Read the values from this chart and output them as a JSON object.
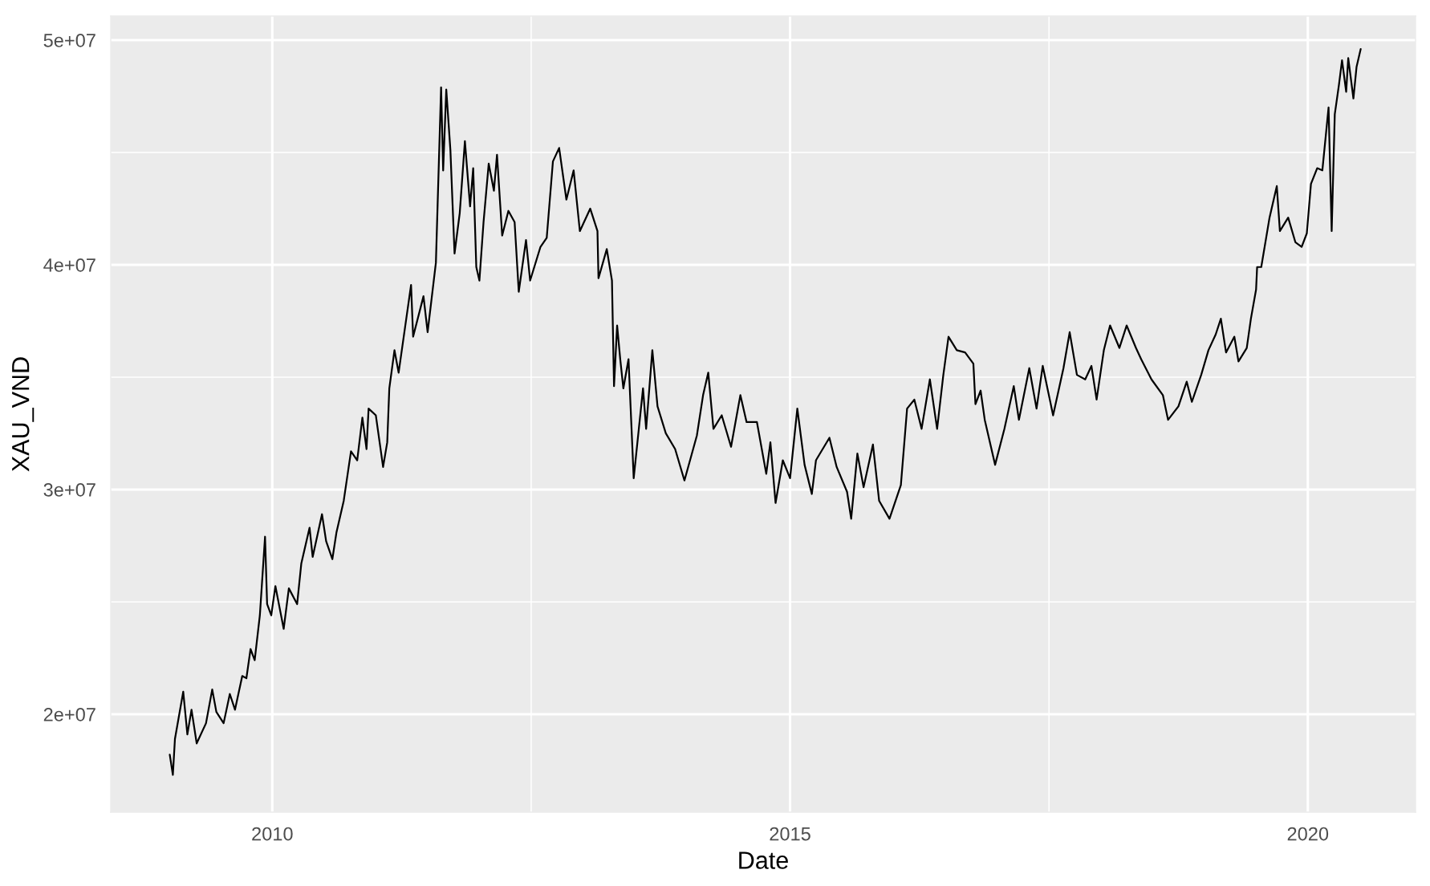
{
  "chart_data": {
    "type": "line",
    "xlabel": "Date",
    "ylabel": "XAU_VND",
    "xlim": [
      2008.44,
      2021.04
    ],
    "ylim": [
      15640000,
      51070000
    ],
    "xticks": [
      2010,
      {
        "value": 2012.5,
        "label": null
      },
      2015,
      {
        "value": 2017.5,
        "label": null
      },
      2020
    ],
    "yticks": [
      {
        "value": 20000000,
        "label": "2e+07"
      },
      {
        "value": 25000000,
        "label": null
      },
      {
        "value": 30000000,
        "label": "3e+07"
      },
      {
        "value": 35000000,
        "label": null
      },
      {
        "value": 40000000,
        "label": "4e+07"
      },
      {
        "value": 45000000,
        "label": null
      },
      {
        "value": 50000000,
        "label": "5e+07"
      }
    ],
    "grid": true,
    "series": [
      {
        "color": "#000000",
        "x": [
          2009.01,
          2009.04,
          2009.06,
          2009.14,
          2009.18,
          2009.22,
          2009.27,
          2009.36,
          2009.42,
          2009.46,
          2009.53,
          2009.59,
          2009.64,
          2009.71,
          2009.75,
          2009.79,
          2009.83,
          2009.88,
          2009.93,
          2009.95,
          2009.99,
          2010.03,
          2010.11,
          2010.16,
          2010.24,
          2010.28,
          2010.36,
          2010.39,
          2010.48,
          2010.52,
          2010.58,
          2010.62,
          2010.69,
          2010.76,
          2010.82,
          2010.87,
          2010.91,
          2010.93,
          2011.0,
          2011.07,
          2011.11,
          2011.13,
          2011.18,
          2011.22,
          2011.34,
          2011.36,
          2011.46,
          2011.5,
          2011.58,
          2011.63,
          2011.65,
          2011.68,
          2011.72,
          2011.76,
          2011.81,
          2011.86,
          2011.91,
          2011.94,
          2011.97,
          2012.0,
          2012.04,
          2012.09,
          2012.14,
          2012.17,
          2012.22,
          2012.28,
          2012.34,
          2012.38,
          2012.45,
          2012.49,
          2012.59,
          2012.65,
          2012.71,
          2012.77,
          2012.84,
          2012.91,
          2012.97,
          2013.07,
          2013.14,
          2013.15,
          2013.23,
          2013.28,
          2013.3,
          2013.33,
          2013.36,
          2013.39,
          2013.44,
          2013.49,
          2013.58,
          2013.61,
          2013.67,
          2013.72,
          2013.8,
          2013.89,
          2013.98,
          2014.1,
          2014.16,
          2014.21,
          2014.26,
          2014.34,
          2014.43,
          2014.52,
          2014.58,
          2014.68,
          2014.77,
          2014.81,
          2014.86,
          2014.93,
          2015.0,
          2015.07,
          2015.14,
          2015.21,
          2015.25,
          2015.38,
          2015.45,
          2015.55,
          2015.59,
          2015.65,
          2015.71,
          2015.8,
          2015.86,
          2015.96,
          2016.07,
          2016.13,
          2016.2,
          2016.27,
          2016.35,
          2016.42,
          2016.48,
          2016.53,
          2016.61,
          2016.69,
          2016.77,
          2016.79,
          2016.84,
          2016.88,
          2016.98,
          2017.07,
          2017.16,
          2017.21,
          2017.31,
          2017.38,
          2017.44,
          2017.54,
          2017.64,
          2017.7,
          2017.77,
          2017.85,
          2017.91,
          2017.96,
          2018.03,
          2018.09,
          2018.18,
          2018.25,
          2018.34,
          2018.39,
          2018.49,
          2018.6,
          2018.65,
          2018.75,
          2018.83,
          2018.88,
          2018.97,
          2019.04,
          2019.11,
          2019.16,
          2019.21,
          2019.29,
          2019.33,
          2019.41,
          2019.45,
          2019.5,
          2019.51,
          2019.55,
          2019.63,
          2019.7,
          2019.73,
          2019.81,
          2019.88,
          2019.94,
          2019.99,
          2020.03,
          2020.09,
          2020.14,
          2020.2,
          2020.23,
          2020.26,
          2020.3,
          2020.33,
          2020.37,
          2020.39,
          2020.44,
          2020.47,
          2020.51
        ],
        "values": [
          18200000,
          17300000,
          18900000,
          21000000,
          19100000,
          20200000,
          18700000,
          19600000,
          21100000,
          20100000,
          19600000,
          20900000,
          20200000,
          21700000,
          21600000,
          22900000,
          22400000,
          24400000,
          27900000,
          24900000,
          24400000,
          25700000,
          23800000,
          25600000,
          24900000,
          26700000,
          28300000,
          27000000,
          28900000,
          27700000,
          26900000,
          28100000,
          29500000,
          31700000,
          31300000,
          33200000,
          31800000,
          33600000,
          33300000,
          31000000,
          32100000,
          34500000,
          36200000,
          35200000,
          39100000,
          36800000,
          38600000,
          37000000,
          40100000,
          47900000,
          44200000,
          47800000,
          45100000,
          40500000,
          42300000,
          45500000,
          42600000,
          44300000,
          39900000,
          39300000,
          41900000,
          44500000,
          43300000,
          44900000,
          41300000,
          42400000,
          41900000,
          38800000,
          41100000,
          39300000,
          40800000,
          41200000,
          44600000,
          45200000,
          42900000,
          44200000,
          41500000,
          42500000,
          41500000,
          39400000,
          40700000,
          39300000,
          34600000,
          37300000,
          35800000,
          34500000,
          35800000,
          30500000,
          34500000,
          32700000,
          36200000,
          33700000,
          32500000,
          31800000,
          30400000,
          32400000,
          34200000,
          35200000,
          32700000,
          33300000,
          31900000,
          34200000,
          33000000,
          33000000,
          30700000,
          32100000,
          29400000,
          31300000,
          30500000,
          33600000,
          31100000,
          29800000,
          31300000,
          32300000,
          31000000,
          29900000,
          28700000,
          31600000,
          30100000,
          32000000,
          29500000,
          28700000,
          30200000,
          33600000,
          34000000,
          32700000,
          34900000,
          32700000,
          35100000,
          36800000,
          36200000,
          36100000,
          35600000,
          33800000,
          34400000,
          33100000,
          31100000,
          32700000,
          34600000,
          33100000,
          35400000,
          33600000,
          35500000,
          33300000,
          35400000,
          37000000,
          35100000,
          34900000,
          35500000,
          34000000,
          36200000,
          37300000,
          36300000,
          37300000,
          36300000,
          35800000,
          34900000,
          34200000,
          33100000,
          33700000,
          34800000,
          33900000,
          35100000,
          36200000,
          36900000,
          37600000,
          36100000,
          36800000,
          35700000,
          36300000,
          37600000,
          38900000,
          39900000,
          39900000,
          42100000,
          43500000,
          41500000,
          42100000,
          41000000,
          40800000,
          41400000,
          43600000,
          44300000,
          44200000,
          47000000,
          41500000,
          46700000,
          48000000,
          49100000,
          47700000,
          49200000,
          47400000,
          48800000,
          49600000
        ]
      }
    ]
  }
}
